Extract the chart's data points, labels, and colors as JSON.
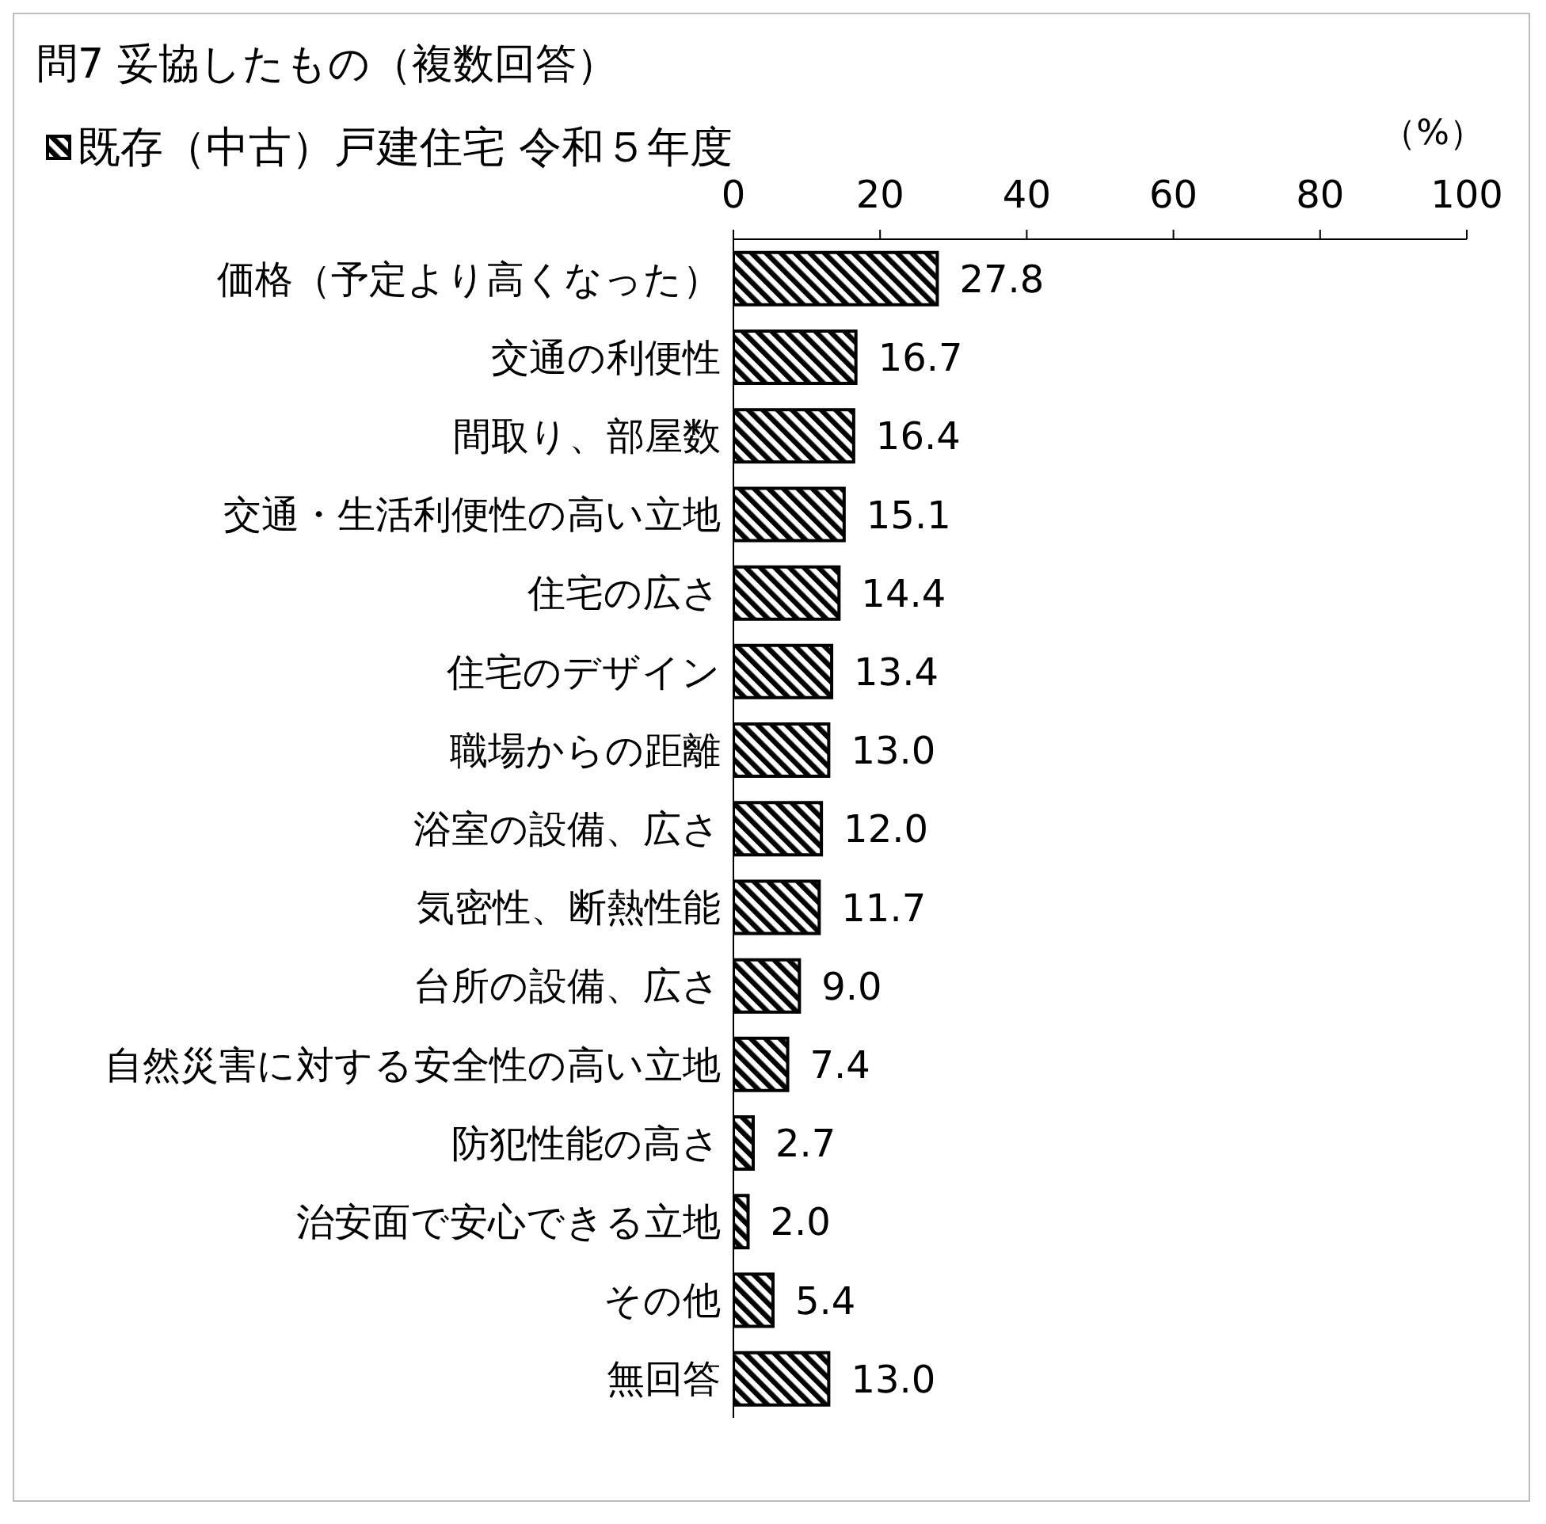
{
  "chart_data": {
    "type": "bar",
    "orientation": "horizontal",
    "title": "問7 妥協したもの（複数回答）",
    "xlabel": "（%）",
    "categories": [
      "価格（予定より高くなった）",
      "交通の利便性",
      "間取り、部屋数",
      "交通・生活利便性の高い立地",
      "住宅の広さ",
      "住宅のデザイン",
      "職場からの距離",
      "浴室の設備、広さ",
      "気密性、断熱性能",
      "台所の設備、広さ",
      "自然災害に対する安全性の高い立地",
      "防犯性能の高さ",
      "治安面で安心できる立地",
      "その他",
      "無回答"
    ],
    "series": [
      {
        "name": "既存（中古）戸建住宅 令和５年度",
        "color": "#000000",
        "values": [
          27.8,
          16.7,
          16.4,
          15.1,
          14.4,
          13.4,
          13.0,
          12.0,
          11.7,
          9.0,
          7.4,
          2.7,
          2.0,
          5.4,
          13.0
        ],
        "value_labels": [
          "27.8",
          "16.7",
          "16.4",
          "15.1",
          "14.4",
          "13.4",
          "13.0",
          "12.0",
          "11.7",
          "9.0",
          "7.4",
          "2.7",
          "2.0",
          "5.4",
          "13.0"
        ]
      }
    ],
    "xlim": [
      0,
      100
    ],
    "xticks": [
      0,
      20,
      40,
      60,
      80,
      100
    ],
    "grid": false,
    "legend": "top left"
  }
}
